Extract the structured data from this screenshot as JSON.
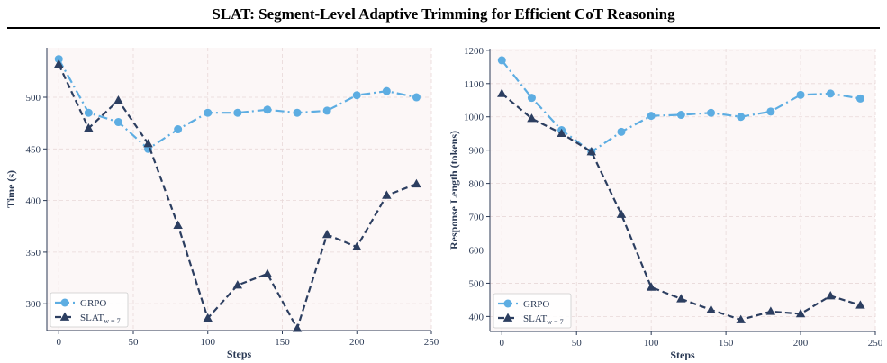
{
  "header": {
    "title": "SLAT: Segment-Level Adaptive Trimming for Efficient CoT Reasoning"
  },
  "colors": {
    "grpo": "#5dade2",
    "slat": "#2c3e60",
    "plot_bg": "#fcf7f7",
    "grid": "#e8d8d8",
    "axis_text": "#2b3a55"
  },
  "chart_data": [
    {
      "type": "line",
      "xlabel": "Steps",
      "ylabel": "Time (s)",
      "xlim": [
        -8,
        250
      ],
      "ylim": [
        274,
        548
      ],
      "xticks": [
        0,
        50,
        100,
        150,
        200,
        250
      ],
      "yticks": [
        300,
        350,
        400,
        450,
        500
      ],
      "grid": true,
      "legend_placement": "bottom-left",
      "x": [
        0,
        20,
        40,
        60,
        80,
        100,
        120,
        140,
        160,
        180,
        200,
        220,
        240
      ],
      "series": [
        {
          "name": "GRPO",
          "marker": "circle",
          "line": "dash-dot",
          "values": [
            537,
            485,
            476,
            450,
            469,
            485,
            485,
            488,
            485,
            487,
            502,
            506,
            500
          ]
        },
        {
          "name": "SLAT",
          "name_subscript": "w = 7",
          "marker": "triangle",
          "line": "dashed",
          "values": [
            532,
            470,
            497,
            455,
            376,
            286,
            318,
            329,
            276,
            367,
            355,
            405,
            416
          ]
        }
      ]
    },
    {
      "type": "line",
      "xlabel": "Steps",
      "ylabel": "Response Length (tokens)",
      "xlim": [
        -8,
        250
      ],
      "ylim": [
        355,
        1205
      ],
      "xticks": [
        0,
        50,
        100,
        150,
        200,
        250
      ],
      "yticks": [
        400,
        500,
        600,
        700,
        800,
        900,
        1000,
        1100,
        1200
      ],
      "grid": true,
      "legend_placement": "bottom-left",
      "x": [
        0,
        20,
        40,
        60,
        80,
        100,
        120,
        140,
        160,
        180,
        200,
        220,
        240
      ],
      "series": [
        {
          "name": "GRPO",
          "marker": "circle",
          "line": "dash-dot",
          "values": [
            1170,
            1057,
            960,
            895,
            955,
            1003,
            1006,
            1012,
            1000,
            1016,
            1066,
            1070,
            1055
          ]
        },
        {
          "name": "SLAT",
          "name_subscript": "w = 7",
          "marker": "triangle",
          "line": "dashed",
          "values": [
            1070,
            995,
            950,
            895,
            707,
            488,
            453,
            420,
            390,
            415,
            408,
            462,
            434
          ]
        }
      ]
    }
  ]
}
